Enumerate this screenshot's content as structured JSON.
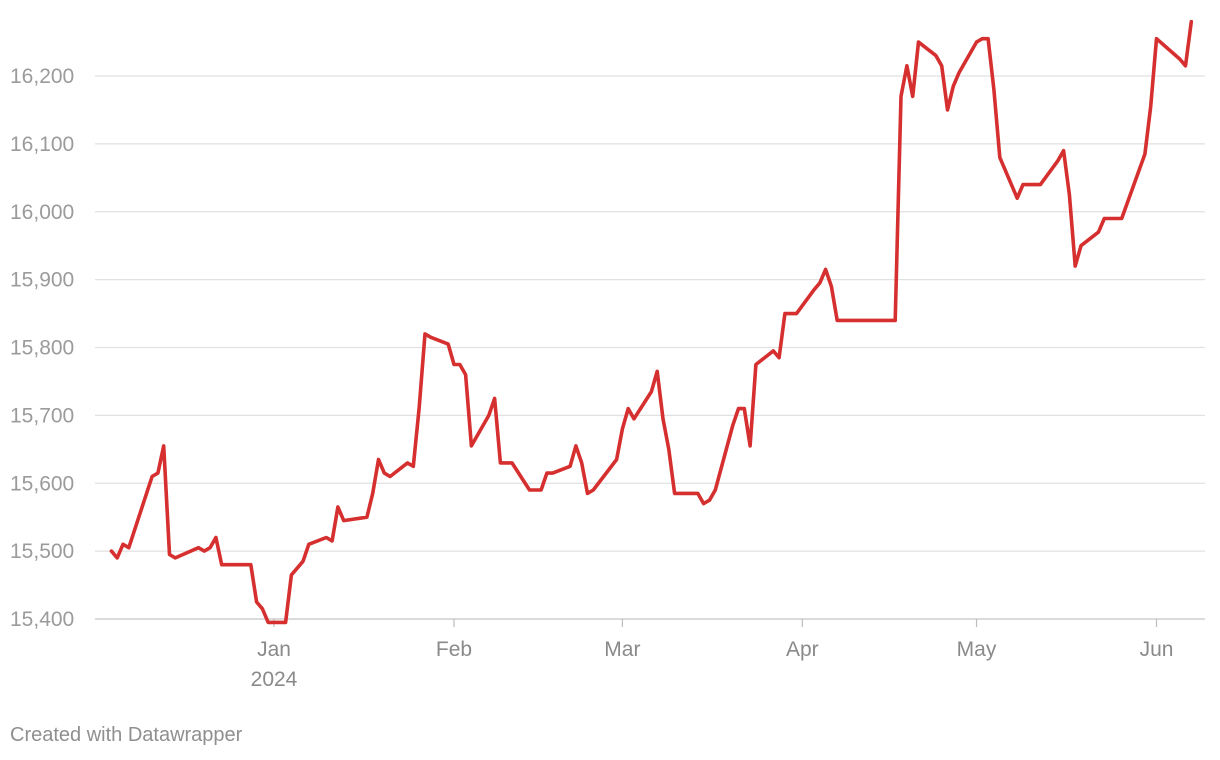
{
  "chart_data": {
    "type": "line",
    "title": "",
    "xlabel": "",
    "ylabel": "",
    "ylim": [
      15400,
      16200
    ],
    "yticks": [
      15400,
      15500,
      15600,
      15700,
      15800,
      15900,
      16000,
      16100,
      16200
    ],
    "ytick_labels": [
      "15,400",
      "15,500",
      "15,600",
      "15,700",
      "15,800",
      "15,900",
      "16,000",
      "16,100",
      "16,200"
    ],
    "xticks": [
      {
        "date": "2024-01-01",
        "label": "Jan",
        "sublabel": "2024"
      },
      {
        "date": "2024-02-01",
        "label": "Feb",
        "sublabel": ""
      },
      {
        "date": "2024-03-01",
        "label": "Mar",
        "sublabel": ""
      },
      {
        "date": "2024-04-01",
        "label": "Apr",
        "sublabel": ""
      },
      {
        "date": "2024-05-01",
        "label": "May",
        "sublabel": ""
      },
      {
        "date": "2024-06-01",
        "label": "Jun",
        "sublabel": ""
      }
    ],
    "grid": true,
    "line_color": "#d62f2f",
    "series": [
      {
        "points": [
          [
            "2023-12-04",
            15500
          ],
          [
            "2023-12-05",
            15490
          ],
          [
            "2023-12-06",
            15510
          ],
          [
            "2023-12-07",
            15505
          ],
          [
            "2023-12-11",
            15610
          ],
          [
            "2023-12-12",
            15615
          ],
          [
            "2023-12-13",
            15655
          ],
          [
            "2023-12-14",
            15495
          ],
          [
            "2023-12-15",
            15490
          ],
          [
            "2023-12-19",
            15505
          ],
          [
            "2023-12-20",
            15500
          ],
          [
            "2023-12-21",
            15505
          ],
          [
            "2023-12-22",
            15520
          ],
          [
            "2023-12-23",
            15480
          ],
          [
            "2023-12-28",
            15480
          ],
          [
            "2023-12-29",
            15425
          ],
          [
            "2023-12-30",
            15415
          ],
          [
            "2023-12-31",
            15395
          ],
          [
            "2024-01-03",
            15395
          ],
          [
            "2024-01-04",
            15465
          ],
          [
            "2024-01-06",
            15485
          ],
          [
            "2024-01-07",
            15510
          ],
          [
            "2024-01-10",
            15520
          ],
          [
            "2024-01-11",
            15515
          ],
          [
            "2024-01-12",
            15565
          ],
          [
            "2024-01-13",
            15545
          ],
          [
            "2024-01-17",
            15550
          ],
          [
            "2024-01-18",
            15585
          ],
          [
            "2024-01-19",
            15635
          ],
          [
            "2024-01-20",
            15615
          ],
          [
            "2024-01-21",
            15610
          ],
          [
            "2024-01-24",
            15630
          ],
          [
            "2024-01-25",
            15625
          ],
          [
            "2024-01-26",
            15710
          ],
          [
            "2024-01-27",
            15820
          ],
          [
            "2024-01-28",
            15815
          ],
          [
            "2024-01-31",
            15805
          ],
          [
            "2024-02-01",
            15775
          ],
          [
            "2024-02-02",
            15775
          ],
          [
            "2024-02-03",
            15760
          ],
          [
            "2024-02-04",
            15655
          ],
          [
            "2024-02-07",
            15700
          ],
          [
            "2024-02-08",
            15725
          ],
          [
            "2024-02-09",
            15630
          ],
          [
            "2024-02-11",
            15630
          ],
          [
            "2024-02-14",
            15590
          ],
          [
            "2024-02-16",
            15590
          ],
          [
            "2024-02-17",
            15615
          ],
          [
            "2024-02-18",
            15615
          ],
          [
            "2024-02-21",
            15625
          ],
          [
            "2024-02-22",
            15655
          ],
          [
            "2024-02-23",
            15630
          ],
          [
            "2024-02-24",
            15585
          ],
          [
            "2024-02-25",
            15590
          ],
          [
            "2024-02-29",
            15635
          ],
          [
            "2024-03-01",
            15680
          ],
          [
            "2024-03-02",
            15710
          ],
          [
            "2024-03-03",
            15695
          ],
          [
            "2024-03-06",
            15735
          ],
          [
            "2024-03-07",
            15765
          ],
          [
            "2024-03-08",
            15695
          ],
          [
            "2024-03-09",
            15650
          ],
          [
            "2024-03-10",
            15585
          ],
          [
            "2024-03-14",
            15585
          ],
          [
            "2024-03-15",
            15570
          ],
          [
            "2024-03-16",
            15575
          ],
          [
            "2024-03-17",
            15590
          ],
          [
            "2024-03-20",
            15685
          ],
          [
            "2024-03-21",
            15710
          ],
          [
            "2024-03-22",
            15710
          ],
          [
            "2024-03-23",
            15655
          ],
          [
            "2024-03-24",
            15775
          ],
          [
            "2024-03-27",
            15795
          ],
          [
            "2024-03-28",
            15785
          ],
          [
            "2024-03-29",
            15850
          ],
          [
            "2024-03-31",
            15850
          ],
          [
            "2024-04-03",
            15885
          ],
          [
            "2024-04-04",
            15895
          ],
          [
            "2024-04-05",
            15915
          ],
          [
            "2024-04-06",
            15890
          ],
          [
            "2024-04-07",
            15840
          ],
          [
            "2024-04-17",
            15840
          ],
          [
            "2024-04-18",
            16170
          ],
          [
            "2024-04-19",
            16215
          ],
          [
            "2024-04-20",
            16170
          ],
          [
            "2024-04-21",
            16250
          ],
          [
            "2024-04-24",
            16230
          ],
          [
            "2024-04-25",
            16215
          ],
          [
            "2024-04-26",
            16150
          ],
          [
            "2024-04-27",
            16185
          ],
          [
            "2024-04-28",
            16205
          ],
          [
            "2024-05-01",
            16250
          ],
          [
            "2024-05-02",
            16255
          ],
          [
            "2024-05-03",
            16255
          ],
          [
            "2024-05-04",
            16180
          ],
          [
            "2024-05-05",
            16080
          ],
          [
            "2024-05-08",
            16020
          ],
          [
            "2024-05-09",
            16040
          ],
          [
            "2024-05-12",
            16040
          ],
          [
            "2024-05-15",
            16075
          ],
          [
            "2024-05-16",
            16090
          ],
          [
            "2024-05-17",
            16025
          ],
          [
            "2024-05-18",
            15920
          ],
          [
            "2024-05-19",
            15950
          ],
          [
            "2024-05-22",
            15970
          ],
          [
            "2024-05-23",
            15990
          ],
          [
            "2024-05-26",
            15990
          ],
          [
            "2024-05-30",
            16085
          ],
          [
            "2024-05-31",
            16155
          ],
          [
            "2024-06-01",
            16255
          ],
          [
            "2024-06-05",
            16225
          ],
          [
            "2024-06-06",
            16215
          ],
          [
            "2024-06-07",
            16280
          ]
        ]
      }
    ]
  },
  "footer": {
    "credit": "Created with Datawrapper"
  }
}
